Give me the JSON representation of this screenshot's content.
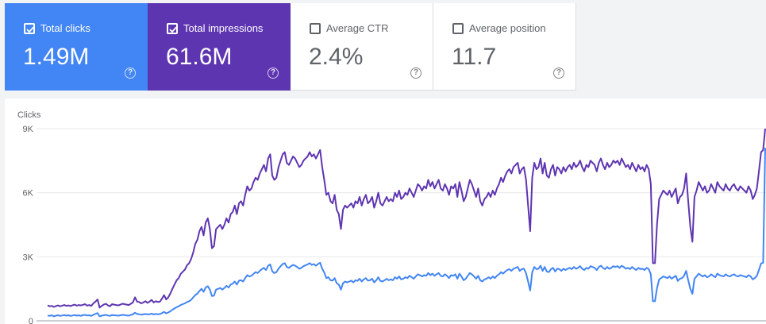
{
  "metrics": [
    {
      "label": "Total clicks",
      "value": "1.49M",
      "checked": true,
      "color": "#4285f4"
    },
    {
      "label": "Total impressions",
      "value": "61.6M",
      "checked": true,
      "color": "#5e35b1"
    },
    {
      "label": "Average CTR",
      "value": "2.4%",
      "checked": false,
      "color": "#ffffff"
    },
    {
      "label": "Average position",
      "value": "11.7",
      "checked": false,
      "color": "#ffffff"
    }
  ],
  "help_glyph": "?",
  "chart_data": {
    "type": "line",
    "ylabel": "Clicks",
    "ylim": [
      0,
      9000
    ],
    "y_ticks": [
      "0",
      "3K",
      "6K",
      "9K"
    ],
    "y_tick_values": [
      0,
      3000,
      6000,
      9000
    ],
    "grid": true,
    "series": [
      {
        "color": "#5e35b1",
        "values": [
          720,
          680,
          700,
          650,
          690,
          720,
          680,
          710,
          740,
          700,
          720,
          690,
          730,
          760,
          710,
          740,
          720,
          750,
          780,
          710,
          740,
          700,
          820,
          900,
          1000,
          620,
          700,
          760,
          800,
          720,
          680,
          780,
          760,
          740,
          720,
          760,
          800,
          780,
          760,
          740,
          800,
          860,
          1100,
          900,
          880,
          820,
          860,
          920,
          840,
          900,
          980,
          860,
          920,
          880,
          900,
          1040,
          1200,
          1000,
          1100,
          1280,
          1500,
          1700,
          1900,
          2000,
          2200,
          2300,
          2400,
          2600,
          2700,
          2900,
          3200,
          3600,
          3800,
          4200,
          4400,
          4000,
          4600,
          4800,
          4300,
          3400,
          3500,
          4300,
          4400,
          4500,
          4300,
          4500,
          4800,
          4600,
          5000,
          5100,
          5400,
          5000,
          5500,
          5600,
          5400,
          5900,
          6300,
          6100,
          6200,
          6500,
          6700,
          6600,
          6900,
          7100,
          7300,
          7000,
          7600,
          7800,
          6800,
          6600,
          6700,
          7200,
          7500,
          7800,
          7900,
          7400,
          7300,
          7500,
          7700,
          7600,
          7400,
          7200,
          7300,
          7500,
          7600,
          7700,
          7900,
          7700,
          7800,
          7600,
          7800,
          8000,
          7200,
          6600,
          5900,
          6000,
          5600,
          5500,
          5900,
          5200,
          5000,
          4300,
          5200,
          5400,
          5300,
          5400,
          5500,
          5300,
          5600,
          5500,
          5800,
          5400,
          5700,
          5900,
          5500,
          5600,
          5800,
          5300,
          5600,
          6000,
          5500,
          5400,
          5600,
          5800,
          5600,
          5700,
          5600,
          6000,
          5800,
          6100,
          5700,
          5800,
          6000,
          5900,
          6200,
          6000,
          5800,
          6100,
          6400,
          6300,
          6100,
          6300,
          6200,
          6600,
          6300,
          6500,
          6200,
          6400,
          6600,
          6200,
          6100,
          6400,
          6200,
          5900,
          6300,
          6200,
          6400,
          5800,
          6500,
          6100,
          5600,
          5800,
          6200,
          6600,
          6400,
          6100,
          5800,
          6200,
          5600,
          5400,
          5700,
          5800,
          6000,
          5800,
          6100,
          5900,
          6200,
          6400,
          6700,
          6500,
          6800,
          7000,
          7100,
          6900,
          7200,
          7300,
          7400,
          6900,
          7100,
          7200,
          6600,
          5400,
          4200,
          6700,
          7400,
          7100,
          7200,
          7600,
          6900,
          7400,
          6800,
          6700,
          7100,
          7300,
          6800,
          7200,
          7100,
          6900,
          7200,
          7000,
          7200,
          7300,
          7100,
          7400,
          7200,
          7300,
          7500,
          7200,
          7000,
          7300,
          7200,
          7500,
          7400,
          7300,
          7000,
          7400,
          7600,
          7300,
          7100,
          7400,
          7200,
          7300,
          7500,
          7400,
          7500,
          7300,
          7600,
          7400,
          7200,
          7300,
          7100,
          7400,
          7200,
          7000,
          7300,
          7100,
          7200,
          7000,
          7300,
          7100,
          6400,
          2700,
          2700,
          4500,
          5700,
          5900,
          6100,
          6000,
          5900,
          6100,
          5800,
          6000,
          6200,
          5500,
          5800,
          5900,
          6200,
          6900,
          5600,
          4400,
          3700,
          5800,
          6100,
          6500,
          6300,
          6100,
          6300,
          6000,
          6100,
          6400,
          6200,
          6000,
          6500,
          6300,
          6200,
          6100,
          6400,
          6200,
          6100,
          6300,
          6400,
          6200,
          6100,
          6300,
          6200,
          6100,
          6000,
          6300,
          6100,
          5700,
          5900,
          6200,
          7000,
          7900,
          8000,
          9000
        ]
      },
      {
        "color": "#4285f4",
        "values": [
          250,
          230,
          260,
          210,
          240,
          260,
          230,
          250,
          270,
          240,
          260,
          230,
          250,
          270,
          240,
          260,
          230,
          270,
          280,
          250,
          260,
          230,
          280,
          330,
          360,
          210,
          240,
          260,
          280,
          250,
          230,
          270,
          260,
          250,
          240,
          260,
          280,
          270,
          250,
          240,
          280,
          300,
          380,
          320,
          310,
          290,
          300,
          320,
          300,
          310,
          340,
          300,
          320,
          310,
          320,
          360,
          420,
          350,
          390,
          450,
          520,
          580,
          640,
          680,
          740,
          780,
          820,
          880,
          920,
          980,
          1100,
          1200,
          1280,
          1400,
          1500,
          1360,
          1560,
          1620,
          1460,
          1160,
          1180,
          1460,
          1500,
          1540,
          1460,
          1540,
          1640,
          1560,
          1700,
          1740,
          1840,
          1700,
          1880,
          1900,
          1840,
          2000,
          2140,
          2080,
          2110,
          2200,
          2280,
          2240,
          2340,
          2420,
          2480,
          2380,
          2580,
          2640,
          2320,
          2240,
          2280,
          2440,
          2560,
          2660,
          2700,
          2520,
          2480,
          2560,
          2620,
          2580,
          2520,
          2440,
          2480,
          2560,
          2600,
          2640,
          2700,
          2620,
          2660,
          2580,
          2660,
          2720,
          2440,
          2260,
          2000,
          2040,
          1900,
          1880,
          2000,
          1760,
          1700,
          1460,
          1760,
          1840,
          1800,
          1840,
          1880,
          1800,
          1900,
          1870,
          1970,
          1840,
          1940,
          2000,
          1880,
          1900,
          1970,
          1800,
          1900,
          2040,
          1870,
          1840,
          1900,
          1970,
          1900,
          1940,
          1900,
          2040,
          1970,
          2080,
          1940,
          1970,
          2040,
          2000,
          2110,
          2040,
          1970,
          2080,
          2180,
          2140,
          2080,
          2140,
          2110,
          2240,
          2140,
          2210,
          2110,
          2180,
          2240,
          2110,
          2080,
          2180,
          2110,
          2000,
          2140,
          2110,
          2180,
          1970,
          2210,
          2080,
          1900,
          1970,
          2110,
          2240,
          2180,
          2080,
          1970,
          2110,
          1900,
          1840,
          1940,
          1970,
          2040,
          1970,
          2080,
          2000,
          2110,
          2180,
          2280,
          2210,
          2310,
          2380,
          2420,
          2340,
          2440,
          2480,
          2520,
          2340,
          2420,
          2440,
          2240,
          1840,
          1420,
          2280,
          2520,
          2420,
          2440,
          2580,
          2340,
          2520,
          2310,
          2280,
          2420,
          2480,
          2310,
          2440,
          2420,
          2340,
          2440,
          2380,
          2440,
          2480,
          2420,
          2520,
          2440,
          2480,
          2560,
          2440,
          2380,
          2480,
          2440,
          2560,
          2520,
          2480,
          2380,
          2520,
          2580,
          2480,
          2420,
          2520,
          2440,
          2480,
          2560,
          2520,
          2560,
          2480,
          2580,
          2520,
          2440,
          2480,
          2420,
          2520,
          2440,
          2380,
          2480,
          2420,
          2440,
          2380,
          2480,
          2420,
          2180,
          920,
          920,
          1530,
          1940,
          2000,
          2080,
          2040,
          2000,
          2080,
          1970,
          2040,
          2110,
          1870,
          1970,
          2000,
          2110,
          2340,
          1900,
          1500,
          1260,
          1970,
          2080,
          2210,
          2140,
          2080,
          2140,
          2040,
          2080,
          2180,
          2110,
          2040,
          2210,
          2140,
          2110,
          2080,
          2180,
          2110,
          2080,
          2140,
          2180,
          2110,
          2080,
          2140,
          2110,
          2080,
          2040,
          2140,
          2080,
          1940,
          2000,
          2110,
          2380,
          2690,
          2720,
          8100
        ]
      }
    ]
  }
}
